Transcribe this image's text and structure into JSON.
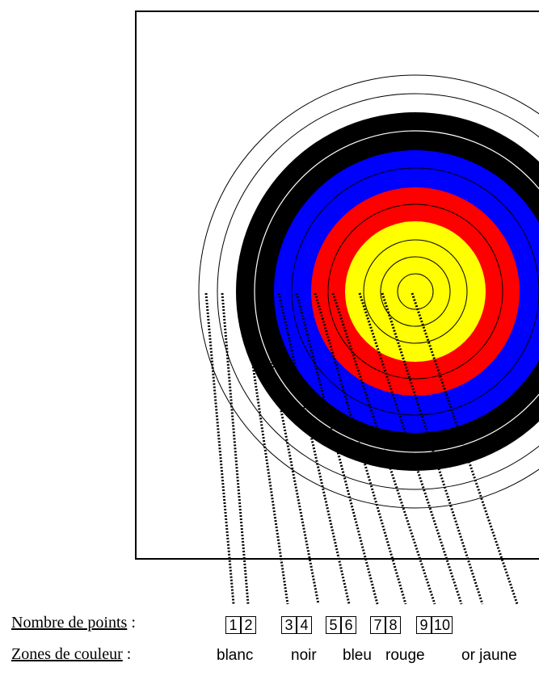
{
  "labels": {
    "points_title": "Nombre de points",
    "points_colon": " :",
    "zones_title": "Zones de couleur",
    "zones_colon": " :"
  },
  "points": [
    "1",
    "2",
    "3",
    "4",
    "5",
    "6",
    "7",
    "8",
    "9",
    "10"
  ],
  "zones": [
    "blanc",
    "noir",
    "bleu",
    "rouge",
    "or jaune"
  ],
  "colors": {
    "blanc": "#ffffff",
    "noir": "#000000",
    "bleu": "#0000ff",
    "rouge": "#ff0000",
    "or_jaune": "#ffff00",
    "line": "#000000"
  }
}
